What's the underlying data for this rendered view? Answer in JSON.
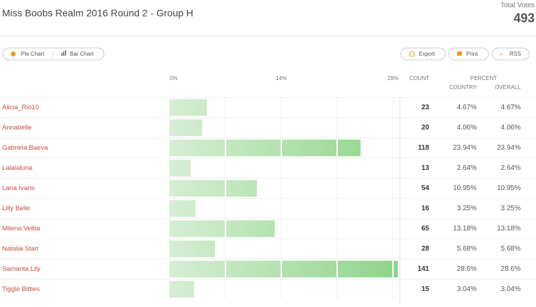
{
  "header": {
    "title": "Miss Boobs Realm 2016 Round 2 - Group H",
    "total_label": "Total Votes",
    "total": 493
  },
  "toolbar": {
    "pie": "Pie Chart",
    "bar": "Bar Chart",
    "export": "Export",
    "print": "Print",
    "rss": "RSS"
  },
  "columns": {
    "count": "COUNT",
    "percent": "PERCENT",
    "country": "COUNTRY",
    "overall": "OVERALL"
  },
  "axis": {
    "ticks": [
      {
        "value": 0,
        "label": "0%"
      },
      {
        "value": 14,
        "label": "14%"
      },
      {
        "value": 28,
        "label": "28%"
      }
    ]
  },
  "rows": [
    {
      "name": "Alicia_Rio10",
      "count": 23,
      "country": {
        "value": 4.67,
        "label": "4.67%"
      },
      "overall": "4.67%"
    },
    {
      "name": "Annabelle",
      "count": 20,
      "country": {
        "value": 4.06,
        "label": "4.06%"
      },
      "overall": "4.06%"
    },
    {
      "name": "Gabriela Baeva",
      "count": 118,
      "country": {
        "value": 23.94,
        "label": "23.94%"
      },
      "overall": "23.94%"
    },
    {
      "name": "Lalalaluna",
      "count": 13,
      "country": {
        "value": 2.64,
        "label": "2.64%"
      },
      "overall": "2.64%"
    },
    {
      "name": "Lana Ivans",
      "count": 54,
      "country": {
        "value": 10.95,
        "label": "10.95%"
      },
      "overall": "10.95%"
    },
    {
      "name": "Lilly Belle",
      "count": 16,
      "country": {
        "value": 3.25,
        "label": "3.25%"
      },
      "overall": "3.25%"
    },
    {
      "name": "Milena Velba",
      "count": 65,
      "country": {
        "value": 13.18,
        "label": "13.18%"
      },
      "overall": "13.18%"
    },
    {
      "name": "Natalia Starr",
      "count": 28,
      "country": {
        "value": 5.68,
        "label": "5.68%"
      },
      "overall": "5.68%"
    },
    {
      "name": "Samanta Lily",
      "count": 141,
      "country": {
        "value": 28.6,
        "label": "28.6%"
      },
      "overall": "28.6%"
    },
    {
      "name": "Tiggle Bitties",
      "count": 15,
      "country": {
        "value": 3.04,
        "label": "3.04%"
      },
      "overall": "3.04%"
    }
  ]
}
